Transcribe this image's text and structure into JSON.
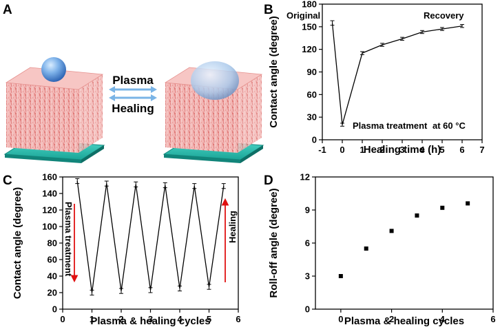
{
  "panels": {
    "A": "A",
    "B": "B",
    "C": "C",
    "D": "D"
  },
  "illustration": {
    "arrow_top": "Plasma",
    "arrow_bottom": "Healing"
  },
  "chart_data": [
    {
      "panel": "B",
      "type": "line",
      "title": "",
      "xlabel": "Healing time (h)",
      "ylabel": "Contact angle (degree)",
      "xlim": [
        -1,
        7
      ],
      "ylim": [
        0,
        180
      ],
      "xticks": [
        -1,
        0,
        1,
        2,
        3,
        4,
        5,
        6,
        7
      ],
      "yticks": [
        0,
        30,
        60,
        90,
        120,
        150,
        180
      ],
      "xticklabels": [
        "-1",
        "0",
        "1",
        "2",
        "3",
        "4",
        "5",
        "6",
        "7"
      ],
      "yticklabels": [
        "0",
        "30",
        "60",
        "90",
        "120",
        "150",
        "180"
      ],
      "x": [
        -0.5,
        0,
        1,
        2,
        3,
        4,
        5,
        6
      ],
      "y": [
        155,
        20,
        115,
        126,
        134,
        143,
        147,
        151
      ],
      "yerr": [
        3,
        2,
        2,
        2,
        2,
        2,
        2,
        2
      ],
      "annotations": {
        "original": "Original",
        "recovery": "Recovery",
        "plasma": "Plasma treatment",
        "temp": "at 60 °C"
      }
    },
    {
      "panel": "C",
      "type": "line",
      "title": "",
      "xlabel": "Plasma & healing cycles",
      "ylabel": "Contact angle (degree)",
      "xlim": [
        0,
        6
      ],
      "ylim": [
        0,
        160
      ],
      "xticks": [
        0,
        1,
        2,
        3,
        4,
        5,
        6
      ],
      "yticks": [
        0,
        20,
        40,
        60,
        80,
        100,
        120,
        140,
        160
      ],
      "xticklabels": [
        "0",
        "1",
        "2",
        "3",
        "4",
        "5",
        "6"
      ],
      "yticklabels": [
        "0",
        "20",
        "40",
        "60",
        "80",
        "100",
        "120",
        "140",
        "160"
      ],
      "x": [
        0.5,
        1,
        1.5,
        2,
        2.5,
        3,
        3.5,
        4,
        4.5,
        5,
        5.5
      ],
      "y": [
        155,
        20,
        152,
        22,
        151,
        23,
        150,
        25,
        149,
        27,
        149
      ],
      "yerr": [
        3,
        3,
        3,
        3,
        3,
        3,
        3,
        3,
        3,
        3,
        3
      ],
      "annotations": {
        "plasma": "Plasma treatment",
        "healing": "Healing"
      }
    },
    {
      "panel": "D",
      "type": "scatter",
      "title": "",
      "xlabel": "Plasma & healing cycles",
      "ylabel": "Roll-off angle (degree)",
      "xlim": [
        -1,
        6
      ],
      "ylim": [
        0,
        12
      ],
      "xticks": [
        0,
        2,
        4,
        6
      ],
      "yticks": [
        0,
        3,
        6,
        9,
        12
      ],
      "xticklabels": [
        "0",
        "2",
        "4",
        "6"
      ],
      "yticklabels": [
        "0",
        "3",
        "6",
        "9",
        "12"
      ],
      "x": [
        0,
        1,
        2,
        3,
        4,
        5
      ],
      "y": [
        3,
        5.5,
        7.1,
        8.5,
        9.2,
        9.6
      ]
    }
  ]
}
